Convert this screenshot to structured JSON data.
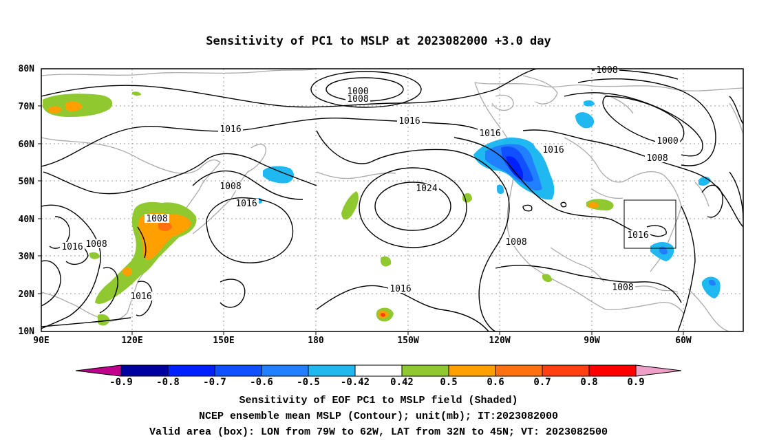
{
  "title": "Sensitivity of PC1 to MSLP at 2023082000 +3.0 day",
  "lat_labels": [
    "80N",
    "70N",
    "60N",
    "50N",
    "40N",
    "30N",
    "20N",
    "10N"
  ],
  "lon_labels": [
    "90E",
    "120E",
    "150E",
    "180",
    "150W",
    "120W",
    "90W",
    "60W"
  ],
  "colorbar": {
    "colors": [
      "#c0008c",
      "#0000a0",
      "#0020ff",
      "#1050ff",
      "#2080ff",
      "#20b8f0",
      "#ffffff",
      "#90c830",
      "#ffa000",
      "#ff7010",
      "#ff4010",
      "#ff0000",
      "#f0a0c8"
    ],
    "labels": [
      "-0.9",
      "-0.8",
      "-0.7",
      "-0.6",
      "-0.5",
      "-0.42",
      "0.42",
      "0.5",
      "0.6",
      "0.7",
      "0.8",
      "0.9"
    ]
  },
  "contour_labels": [
    "1000",
    "1008",
    "1008",
    "1016",
    "1016",
    "1016",
    "1016",
    "1008",
    "1016",
    "1024",
    "1016",
    "1008",
    "1000",
    "1008",
    "1008",
    "1016",
    "1008",
    "1016",
    "1008",
    "1016",
    "1008"
  ],
  "footer": {
    "line1": "Sensitivity of EOF PC1 to MSLP field (Shaded)",
    "line2": "NCEP ensemble mean MSLP (Contour); unit(mb); IT:2023082000",
    "line3": "Valid area (box): LON from 79W to 62W, LAT from 32N to 45N; VT: 2023082500"
  }
}
